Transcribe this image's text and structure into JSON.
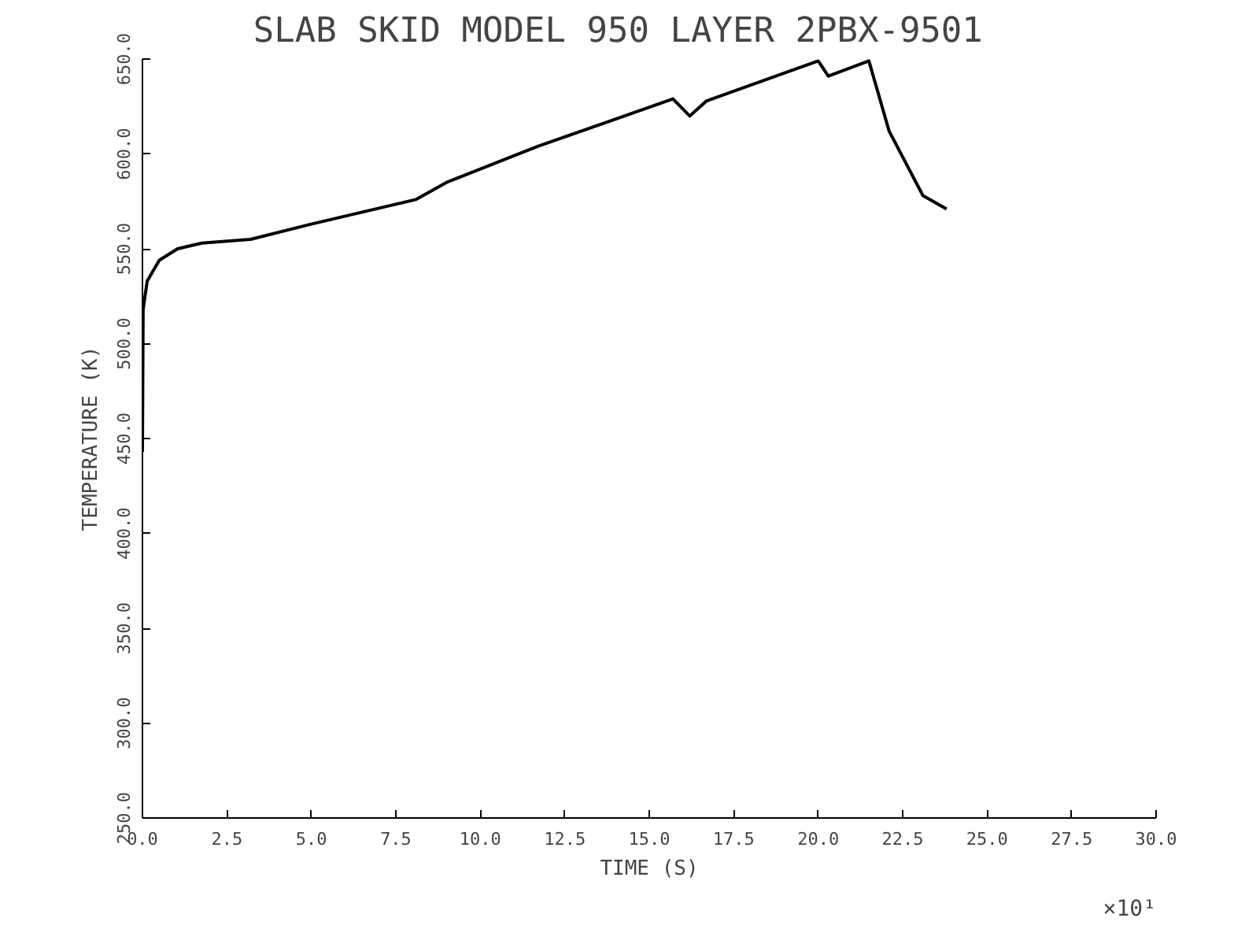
{
  "chart_data": {
    "type": "line",
    "title": "SLAB SKID MODEL 950 LAYER    2PBX-9501",
    "xlabel": "TIME (S)",
    "ylabel": "TEMPERATURE (K)",
    "annotations": [
      "×10¹"
    ],
    "x": [
      0.0,
      0.02,
      0.14,
      0.5,
      1.04,
      1.76,
      3.2,
      5.0,
      8.1,
      9.0,
      11.7,
      15.7,
      16.2,
      16.7,
      20.0,
      20.3,
      21.5,
      22.1,
      23.1,
      23.8
    ],
    "series": [
      {
        "color": "#000000",
        "values": [
          443,
          518,
          533,
          544,
          550,
          553,
          555,
          563,
          576,
          585,
          604,
          629,
          620,
          628,
          649,
          641,
          649,
          612,
          578,
          571
        ]
      }
    ],
    "xlim": [
      0,
      30
    ],
    "ylim": [
      250,
      650
    ],
    "xticks": [
      {
        "value": 0,
        "label": "0.0"
      },
      2.5,
      {
        "value": 5,
        "label": "5.0"
      },
      7.5,
      {
        "value": 10,
        "label": "10.0"
      },
      12.5,
      {
        "value": 15,
        "label": "15.0"
      },
      17.5,
      {
        "value": 20,
        "label": "20.0"
      },
      22.5,
      {
        "value": 25,
        "label": "25.0"
      },
      27.5,
      {
        "value": 30,
        "label": "30.0"
      }
    ],
    "yticks": [
      {
        "value": 250,
        "label": "250.0"
      },
      {
        "value": 300,
        "label": "300.0"
      },
      {
        "value": 350,
        "label": "350.0"
      },
      {
        "value": 400,
        "label": "400.0"
      },
      {
        "value": 450,
        "label": "450.0"
      },
      {
        "value": 500,
        "label": "500.0"
      },
      {
        "value": 550,
        "label": "550.0"
      },
      {
        "value": 600,
        "label": "600.0"
      },
      {
        "value": 650,
        "label": "650.0"
      }
    ],
    "grid": false,
    "marker": "none",
    "line_style": "solid"
  }
}
